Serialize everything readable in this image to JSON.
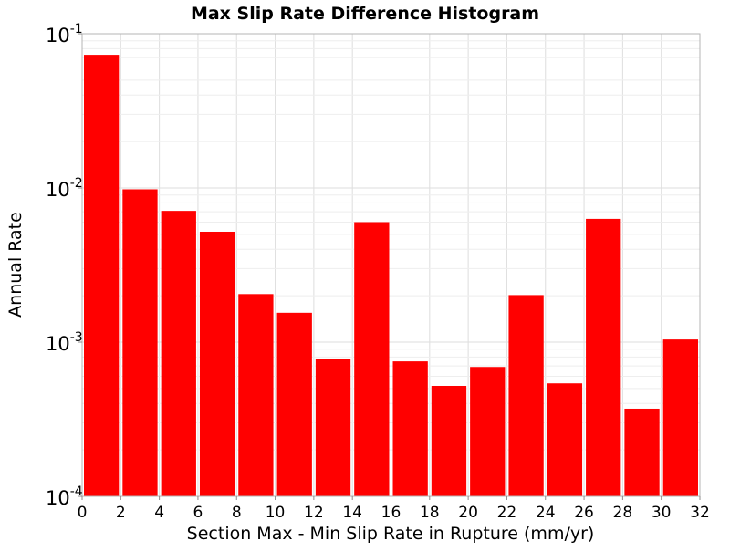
{
  "chart_data": {
    "type": "bar",
    "title": "Max Slip Rate Difference Histogram",
    "xlabel": "Section Max - Min Slip Rate in Rupture (mm/yr)",
    "ylabel": "Annual Rate",
    "xlim": [
      0,
      32
    ],
    "ylim": [
      0.0001,
      0.1
    ],
    "yscale": "log",
    "bin_width": 2,
    "bar_color": "#ff0000",
    "grid": true,
    "legend": "none",
    "x_ticks": [
      "0",
      "2",
      "4",
      "6",
      "8",
      "10",
      "12",
      "14",
      "16",
      "18",
      "20",
      "22",
      "24",
      "26",
      "28",
      "30",
      "32"
    ],
    "y_ticks": [
      {
        "base": "10",
        "exp": "-4",
        "value": 0.0001
      },
      {
        "base": "10",
        "exp": "-3",
        "value": 0.001
      },
      {
        "base": "10",
        "exp": "-2",
        "value": 0.01
      },
      {
        "base": "10",
        "exp": "-1",
        "value": 0.1
      }
    ],
    "bins": [
      {
        "x": 1,
        "value": 0.073
      },
      {
        "x": 3,
        "value": 0.0098
      },
      {
        "x": 5,
        "value": 0.0071
      },
      {
        "x": 7,
        "value": 0.0052
      },
      {
        "x": 9,
        "value": 0.00205
      },
      {
        "x": 11,
        "value": 0.00155
      },
      {
        "x": 13,
        "value": 0.00078
      },
      {
        "x": 15,
        "value": 0.006
      },
      {
        "x": 17,
        "value": 0.00075
      },
      {
        "x": 19,
        "value": 0.00052
      },
      {
        "x": 21,
        "value": 0.00069
      },
      {
        "x": 23,
        "value": 0.00202
      },
      {
        "x": 25,
        "value": 0.00054
      },
      {
        "x": 27,
        "value": 0.0063
      },
      {
        "x": 29,
        "value": 0.00037
      },
      {
        "x": 31,
        "value": 0.00104
      }
    ]
  }
}
